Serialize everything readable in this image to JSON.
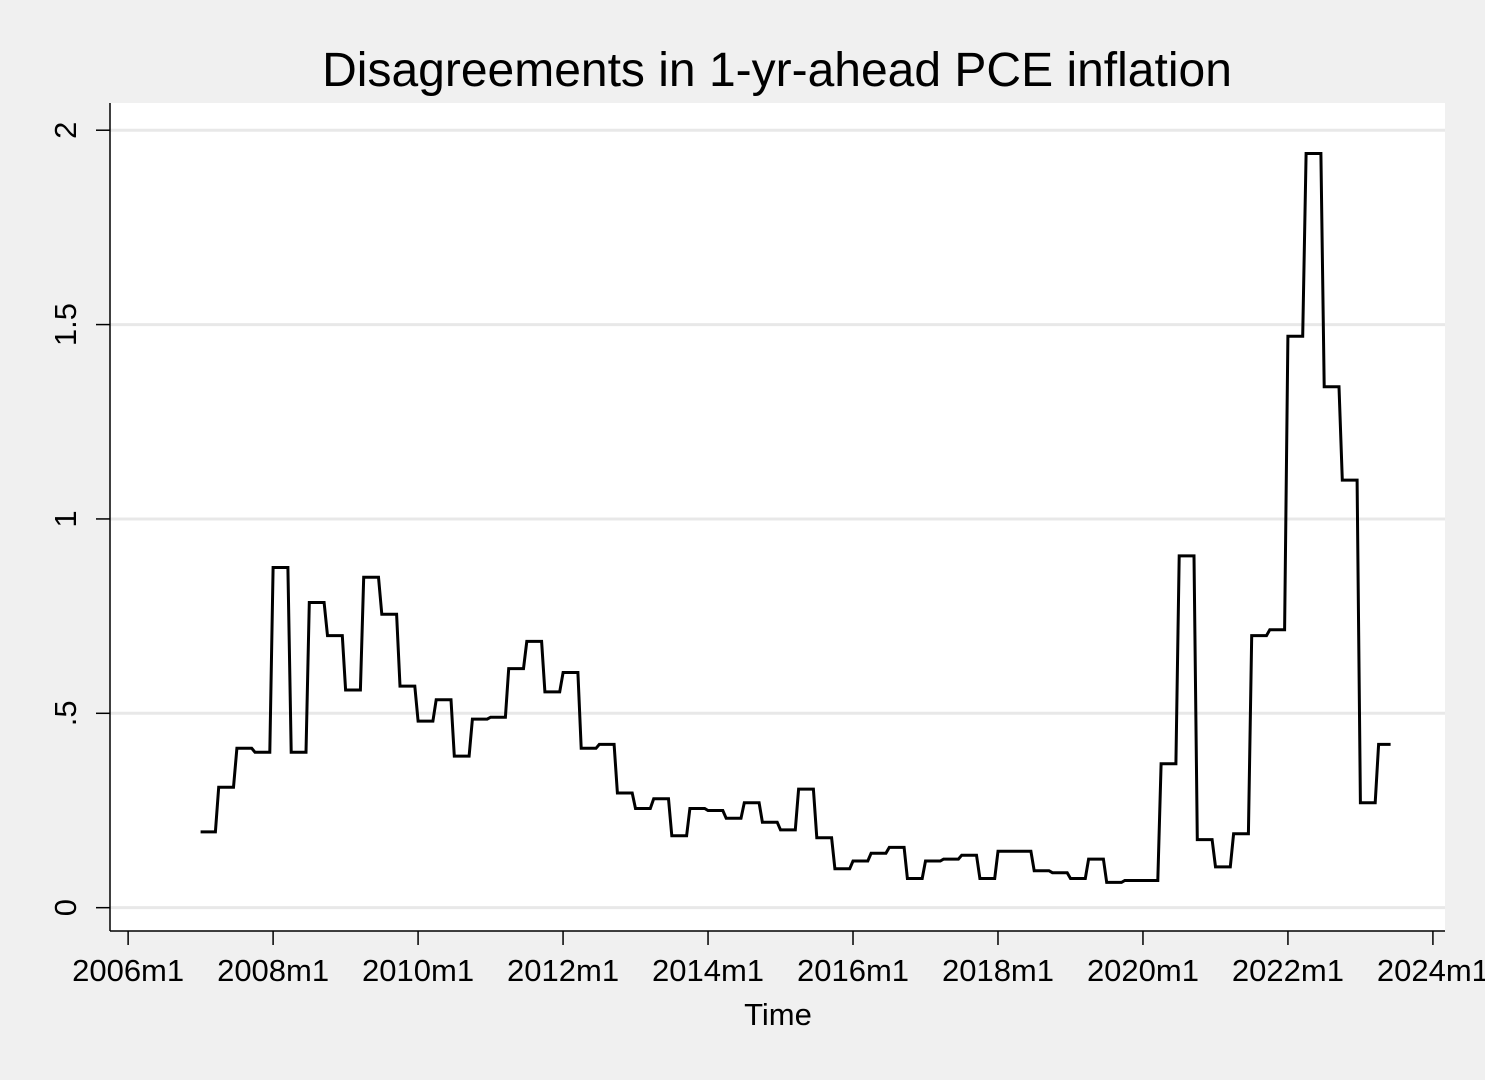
{
  "chart_data": {
    "type": "line",
    "title": "Disagreements in 1-yr-ahead PCE inflation",
    "xlabel": "Time",
    "ylabel": "",
    "x_tick_labels": [
      "2006m1",
      "2008m1",
      "2010m1",
      "2012m1",
      "2014m1",
      "2016m1",
      "2018m1",
      "2020m1",
      "2022m1",
      "2024m1"
    ],
    "y_tick_labels": [
      "0",
      ".5",
      "1",
      "1.5",
      "2"
    ],
    "y_ticks": [
      0,
      0.5,
      1,
      1.5,
      2
    ],
    "xlim": [
      "2005m10",
      "2024m3"
    ],
    "ylim": [
      -0.06,
      2.07
    ],
    "grid": true,
    "line_color": "#000000",
    "background_color": "#ffffff",
    "outer_background_color": "#f0f0f0",
    "gridline_color": "#e8e8e8",
    "series": [
      {
        "line_style": "step",
        "x": [
          "2007m1",
          "2007m4",
          "2007m7",
          "2007m10",
          "2008m1",
          "2008m4",
          "2008m7",
          "2008m10",
          "2009m1",
          "2009m4",
          "2009m7",
          "2009m10",
          "2010m1",
          "2010m4",
          "2010m7",
          "2010m10",
          "2011m1",
          "2011m4",
          "2011m7",
          "2011m10",
          "2012m1",
          "2012m4",
          "2012m7",
          "2012m10",
          "2013m1",
          "2013m4",
          "2013m7",
          "2013m10",
          "2014m1",
          "2014m4",
          "2014m7",
          "2014m10",
          "2015m1",
          "2015m4",
          "2015m7",
          "2015m10",
          "2016m1",
          "2016m4",
          "2016m7",
          "2016m10",
          "2017m1",
          "2017m4",
          "2017m7",
          "2017m10",
          "2018m1",
          "2018m4",
          "2018m7",
          "2018m10",
          "2019m1",
          "2019m4",
          "2019m7",
          "2019m10",
          "2020m1",
          "2020m4",
          "2020m7",
          "2020m10",
          "2021m1",
          "2021m4",
          "2021m7",
          "2021m10",
          "2022m1",
          "2022m4",
          "2022m7",
          "2022m10",
          "2023m1",
          "2023m4",
          "2023m6"
        ],
        "values": [
          0.195,
          0.31,
          0.41,
          0.4,
          0.875,
          0.4,
          0.785,
          0.7,
          0.56,
          0.85,
          0.755,
          0.57,
          0.48,
          0.535,
          0.39,
          0.485,
          0.49,
          0.615,
          0.685,
          0.555,
          0.605,
          0.41,
          0.42,
          0.295,
          0.255,
          0.28,
          0.185,
          0.255,
          0.25,
          0.23,
          0.27,
          0.22,
          0.2,
          0.305,
          0.18,
          0.1,
          0.12,
          0.14,
          0.155,
          0.075,
          0.12,
          0.125,
          0.135,
          0.075,
          0.145,
          0.145,
          0.095,
          0.09,
          0.075,
          0.125,
          0.065,
          0.07,
          0.07,
          0.37,
          0.905,
          0.175,
          0.105,
          0.19,
          0.7,
          0.715,
          1.47,
          1.94,
          1.34,
          1.1,
          0.27,
          0.42,
          0.42
        ]
      }
    ]
  }
}
